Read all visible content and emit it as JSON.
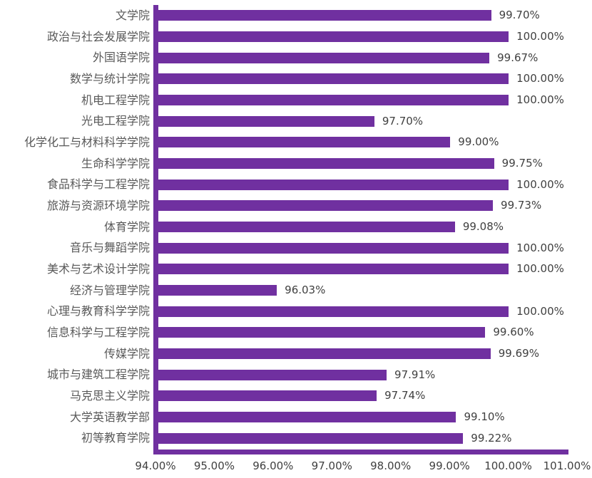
{
  "chart_data": {
    "type": "bar",
    "orientation": "horizontal",
    "title": "",
    "xlabel": "",
    "ylabel": "",
    "grid": false,
    "legend": null,
    "xlim": [
      94,
      101
    ],
    "x_ticks": [
      "94.00%",
      "95.00%",
      "96.00%",
      "97.00%",
      "98.00%",
      "99.00%",
      "100.00%",
      "101.00%"
    ],
    "categories": [
      "文学院",
      "政治与社会发展学院",
      "外国语学院",
      "数学与统计学院",
      "机电工程学院",
      "光电工程学院",
      "化学化工与材料科学学院",
      "生命科学学院",
      "食品科学与工程学院",
      "旅游与资源环境学院",
      "体育学院",
      "音乐与舞蹈学院",
      "美术与艺术设计学院",
      "经济与管理学院",
      "心理与教育科学学院",
      "信息科学与工程学院",
      "传媒学院",
      "城市与建筑工程学院",
      "马克思主义学院",
      "大学英语教学部",
      "初等教育学院"
    ],
    "values": [
      99.7,
      100.0,
      99.67,
      100.0,
      100.0,
      97.7,
      99.0,
      99.75,
      100.0,
      99.73,
      99.08,
      100.0,
      100.0,
      96.03,
      100.0,
      99.6,
      99.69,
      97.91,
      97.74,
      99.1,
      99.22
    ],
    "value_labels": [
      "99.70%",
      "100.00%",
      "99.67%",
      "100.00%",
      "100.00%",
      "97.70%",
      "99.00%",
      "99.75%",
      "100.00%",
      "99.73%",
      "99.08%",
      "100.00%",
      "100.00%",
      "96.03%",
      "100.00%",
      "99.60%",
      "99.69%",
      "97.91%",
      "97.74%",
      "99.10%",
      "99.22%"
    ],
    "colors": {
      "bar": "#7030A0",
      "axis_line": "#7030A0",
      "category_label": "#595959",
      "value_label": "#404040",
      "tick_label": "#404040",
      "background": "#ffffff"
    }
  }
}
